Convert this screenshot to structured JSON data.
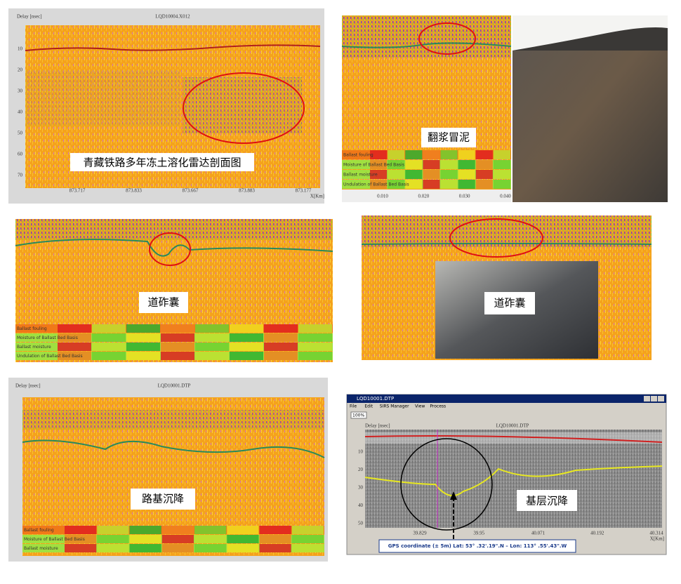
{
  "panel1": {
    "axis_title": "Delay [nsec]",
    "file": "LQD10004.X012",
    "caption": "青藏铁路多年冻土溶化雷达剖面图",
    "y_ticks": [
      "10",
      "20",
      "30",
      "40",
      "50",
      "60",
      "70"
    ],
    "x_ticks": [
      "873.717",
      "873.833",
      "873.667",
      "873.883",
      "873.177"
    ],
    "x_unit": "X[Km]"
  },
  "panel2": {
    "caption": "翻浆冒泥",
    "bar_labels": [
      "Ballast fouling",
      "Moisture of Ballast Bed Basis",
      "Ballast moisture",
      "Undulation of Ballast Bed Basis"
    ],
    "x_ticks": [
      "0.010",
      "0.020",
      "0.030",
      "0.040"
    ]
  },
  "panel3": {
    "caption": "道砟囊",
    "bar_labels": [
      "Ballast fouling",
      "Moisture of Ballast Bed Basis",
      "Ballast moisture",
      "Undulation of Ballast Bed Basis"
    ]
  },
  "panel4": {
    "caption": "道砟囊"
  },
  "panel5": {
    "axis_title": "Delay [nsec]",
    "file": "LQD10001.DTP",
    "caption": "路基沉降",
    "bar_labels": [
      "Ballast fouling",
      "Moisture of Ballast Bed Basis",
      "Ballast moisture"
    ]
  },
  "panel6": {
    "window_title": "LQD10001.DTP",
    "menu": [
      "File",
      "Edit",
      "SIRS Manager",
      "View",
      "Process"
    ],
    "zoom": "100%",
    "axis_title": "Delay [nsec]",
    "file": "LQD10001.DTP",
    "y_ticks": [
      "10",
      "20",
      "30",
      "40",
      "50"
    ],
    "x_ticks": [
      "39.829",
      "39.95",
      "40.071",
      "40.192",
      "40.314"
    ],
    "x_unit": "X[Km]",
    "caption": "基层沉降",
    "gps": "GPS coordinate (± 5m) Lat: 53° .32'.19\".N – Lon: 113° .55'.43\".W"
  }
}
